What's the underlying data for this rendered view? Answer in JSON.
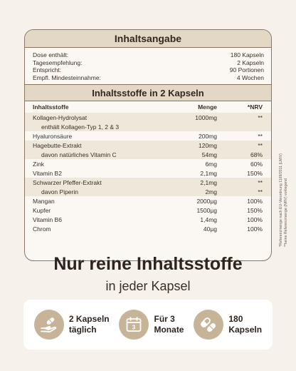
{
  "panel": {
    "title": "Inhaltsangabe",
    "info": [
      {
        "label": "Dose enthält:",
        "value": "180 Kapseln"
      },
      {
        "label": "Tagesempfehlung:",
        "value": "2 Kapseln"
      },
      {
        "label": "Entspricht:",
        "value": "90 Portionen"
      },
      {
        "label": "Empfl. Mindesteinnahme:",
        "value": "4 Wochen"
      }
    ],
    "ingredients_title": "Inhaltsstoffe in 2 Kapseln",
    "columns": {
      "name": "Inhaltsstoffe",
      "amount": "Menge",
      "nrv": "*NRV"
    },
    "rows": [
      {
        "name": "Kollagen-Hydrolysat",
        "amount": "1000mg",
        "nrv": "**"
      },
      {
        "name": "enthält Kollagen-Typ 1, 2 & 3",
        "amount": "",
        "nrv": ""
      },
      {
        "name": "Hyaluronsäure",
        "amount": "200mg",
        "nrv": "**"
      },
      {
        "name": "Hagebutte-Extrakt",
        "amount": "120mg",
        "nrv": "**"
      },
      {
        "name": "davon natürliches Vitamin C",
        "amount": "54mg",
        "nrv": "68%"
      },
      {
        "name": "Zink",
        "amount": "6mg",
        "nrv": "60%"
      },
      {
        "name": "Vitamin B2",
        "amount": "2,1mg",
        "nrv": "150%"
      },
      {
        "name": "Schwarzer Pfeffer-Extrakt",
        "amount": "2,1mg",
        "nrv": "**"
      },
      {
        "name": "davon Piperin",
        "amount": "2mg",
        "nrv": "**"
      },
      {
        "name": "Mangan",
        "amount": "2000µg",
        "nrv": "100%"
      },
      {
        "name": "Kupfer",
        "amount": "1500µg",
        "nrv": "150%"
      },
      {
        "name": "Vitamin B6",
        "amount": "1,4mg",
        "nrv": "100%"
      },
      {
        "name": "Chrom",
        "amount": "40µg",
        "nrv": "100%"
      }
    ],
    "footnote_1": "*Referenzmenge nach EU-Verordnung 1169/2011 (LMIV)",
    "footnote_2": "**keine Referenzmenge (NRV) vorliegend"
  },
  "headline": "Nur reine Inhaltsstoffe",
  "subline": "in jeder Kapsel",
  "features": [
    {
      "icon": "hand-capsule-icon",
      "line1": "2 Kapseln",
      "line2": "täglich"
    },
    {
      "icon": "calendar-icon",
      "line1": "Für 3",
      "line2": "Monate",
      "calendar_day": "3"
    },
    {
      "icon": "capsules-icon",
      "line1": "180",
      "line2": "Kapseln"
    }
  ],
  "colors": {
    "background": "#f6f1ea",
    "accent": "#c7b397",
    "header": "#e3d7c5",
    "border": "#8a7560"
  }
}
